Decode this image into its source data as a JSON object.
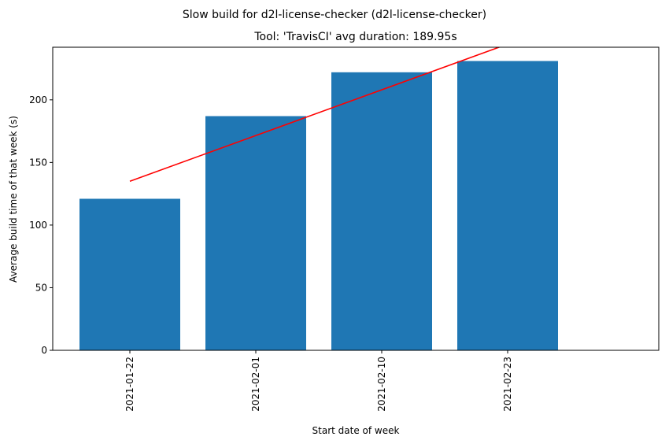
{
  "chart_data": {
    "type": "bar",
    "suptitle": "Slow build for d2l-license-checker (d2l-license-checker)",
    "title": "Tool: 'TravisCI' avg duration: 189.95s",
    "xlabel": "Start date of week",
    "ylabel": "Average build time of that week (s)",
    "categories": [
      "2021-01-22",
      "2021-02-01",
      "2021-02-10",
      "2021-02-23"
    ],
    "values": [
      121,
      187,
      222,
      231
    ],
    "ylim": [
      0,
      242
    ],
    "yticks": [
      0,
      50,
      100,
      150,
      200
    ],
    "bar_color": "#1f77b4",
    "trend_color": "#ff0000",
    "trend": {
      "start": {
        "category": "2021-01-22",
        "value": 135
      },
      "slope_per_category": 36.5
    },
    "grid": false
  }
}
